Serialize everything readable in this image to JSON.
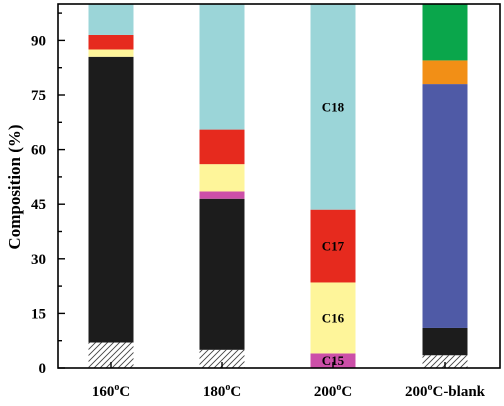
{
  "chart_data": {
    "type": "bar",
    "stacked": true,
    "ylabel": "Composition (%)",
    "ylim": [
      0,
      100
    ],
    "yticks": [
      0,
      15,
      30,
      45,
      60,
      75,
      90
    ],
    "grid": false,
    "legend": "none",
    "categories": [
      {
        "main": "160",
        "sup": "o",
        "rest": "C"
      },
      {
        "main": "180",
        "sup": "o",
        "rest": "C"
      },
      {
        "main": "200",
        "sup": "o",
        "rest": "C"
      },
      {
        "main": "200",
        "sup": "o",
        "rest": "C-blank"
      }
    ],
    "bars": [
      {
        "segments": [
          {
            "value": 7.0,
            "color": "#ffffff",
            "pattern": "hatch"
          },
          {
            "value": 78.5,
            "color": "#1c1c1c"
          },
          {
            "value": 2.0,
            "color": "#fef59a"
          },
          {
            "value": 4.0,
            "color": "#e62a1e"
          },
          {
            "value": 8.5,
            "color": "#9bd5d8"
          }
        ]
      },
      {
        "segments": [
          {
            "value": 5.0,
            "color": "#ffffff",
            "pattern": "hatch"
          },
          {
            "value": 41.5,
            "color": "#1c1c1c"
          },
          {
            "value": 2.0,
            "color": "#cc4fa8"
          },
          {
            "value": 7.5,
            "color": "#fef59a"
          },
          {
            "value": 9.5,
            "color": "#e62a1e"
          },
          {
            "value": 34.5,
            "color": "#9bd5d8"
          }
        ]
      },
      {
        "segments": [
          {
            "value": 4.0,
            "color": "#cc4fa8",
            "label": "C15"
          },
          {
            "value": 19.5,
            "color": "#fef59a",
            "label": "C16"
          },
          {
            "value": 20.0,
            "color": "#e62a1e",
            "label": "C17"
          },
          {
            "value": 56.5,
            "color": "#9bd5d8",
            "label": "C18"
          }
        ]
      },
      {
        "segments": [
          {
            "value": 3.5,
            "color": "#ffffff",
            "pattern": "hatch"
          },
          {
            "value": 7.5,
            "color": "#1c1c1c"
          },
          {
            "value": 67.0,
            "color": "#4f5aa6"
          },
          {
            "value": 6.5,
            "color": "#f28f16"
          },
          {
            "value": 15.5,
            "color": "#0aa64b"
          }
        ]
      }
    ]
  }
}
